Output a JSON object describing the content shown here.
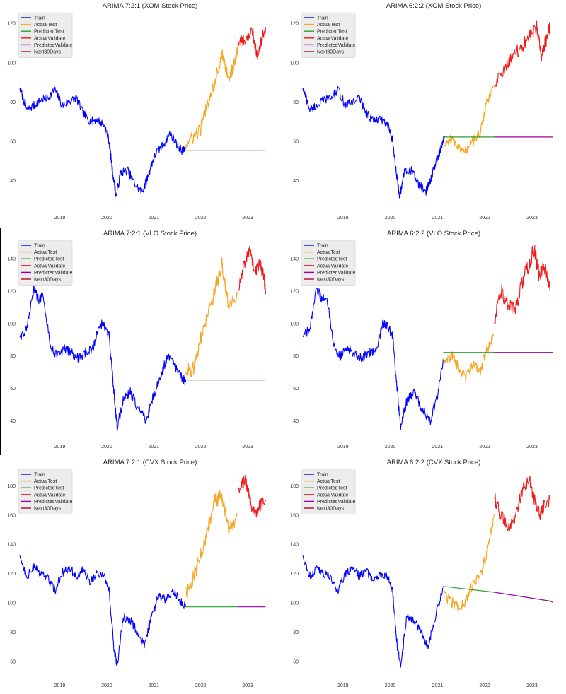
{
  "chart_data": [
    {
      "type": "line",
      "title": "ARIMA 7:2:1 (XOM Stock Price)",
      "xlabel": "",
      "ylabel": "",
      "xlim": [
        2018.15,
        2023.45
      ],
      "ylim": [
        26,
        126
      ],
      "yticks": [
        40,
        60,
        80,
        100,
        120
      ],
      "xticks": [
        "2019",
        "2020",
        "2021",
        "2022",
        "2023"
      ],
      "xtick_values": [
        2019,
        2020,
        2021,
        2022,
        2023
      ],
      "legend_position": "top-left",
      "grid": false,
      "series": [
        {
          "name": "Train",
          "color": "#0000ff",
          "x": [
            2018.15,
            2018.3,
            2018.45,
            2018.6,
            2018.75,
            2018.9,
            2019.05,
            2019.2,
            2019.35,
            2019.5,
            2019.65,
            2019.8,
            2019.95,
            2020.05,
            2020.12,
            2020.2,
            2020.3,
            2020.45,
            2020.6,
            2020.75,
            2020.85,
            2020.95,
            2021.05,
            2021.2,
            2021.35,
            2021.5,
            2021.6,
            2021.68
          ],
          "y": [
            87,
            76,
            78,
            81,
            82,
            86,
            78,
            80,
            82,
            74,
            70,
            71,
            68,
            60,
            45,
            32,
            44,
            45,
            38,
            34,
            40,
            48,
            54,
            58,
            64,
            58,
            55,
            56
          ],
          "noise": 2.2
        },
        {
          "name": "ActualTest",
          "color": "#f5a623",
          "x": [
            2021.68,
            2021.85,
            2022.0,
            2022.15,
            2022.3,
            2022.45,
            2022.6,
            2022.7,
            2022.8
          ],
          "y": [
            58,
            62,
            66,
            80,
            90,
            104,
            92,
            98,
            108
          ],
          "noise": 3.5
        },
        {
          "name": "PredictedTest",
          "color": "#2aa02a",
          "x": [
            2021.68,
            2022.8
          ],
          "y": [
            55,
            55
          ],
          "noise": 0
        },
        {
          "name": "ActualValidate",
          "color": "#ee1c1c",
          "x": [
            2022.8,
            2022.95,
            2023.1,
            2023.2,
            2023.3,
            2023.38
          ],
          "y": [
            110,
            112,
            116,
            104,
            112,
            118
          ],
          "noise": 3.0
        },
        {
          "name": "PredictedValidate",
          "color": "#9900aa",
          "x": [
            2022.8,
            2023.38
          ],
          "y": [
            55,
            55
          ],
          "noise": 0
        },
        {
          "name": "Next30Days",
          "color": "#9b1030",
          "x": [],
          "y": [],
          "noise": 0
        }
      ]
    },
    {
      "type": "line",
      "title": "ARIMA 6:2:2 (XOM Stock Price)",
      "xlabel": "",
      "ylabel": "",
      "xlim": [
        2018.15,
        2023.45
      ],
      "ylim": [
        26,
        126
      ],
      "yticks": [
        40,
        60,
        80,
        100,
        120
      ],
      "xticks": [
        "2019",
        "2020",
        "2021",
        "2022",
        "2023"
      ],
      "xtick_values": [
        2019,
        2020,
        2021,
        2022,
        2023
      ],
      "legend_position": "top-left",
      "grid": false,
      "series": [
        {
          "name": "Train",
          "color": "#0000ff",
          "x": [
            2018.15,
            2018.3,
            2018.45,
            2018.6,
            2018.75,
            2018.9,
            2019.05,
            2019.2,
            2019.35,
            2019.5,
            2019.65,
            2019.8,
            2019.95,
            2020.05,
            2020.12,
            2020.2,
            2020.3,
            2020.45,
            2020.6,
            2020.75,
            2020.85,
            2020.95,
            2021.05,
            2021.15
          ],
          "y": [
            87,
            76,
            78,
            81,
            82,
            86,
            78,
            80,
            82,
            74,
            70,
            71,
            68,
            60,
            45,
            32,
            44,
            45,
            38,
            34,
            40,
            48,
            54,
            62
          ],
          "noise": 2.2
        },
        {
          "name": "ActualTest",
          "color": "#f5a623",
          "x": [
            2021.15,
            2021.3,
            2021.45,
            2021.6,
            2021.75,
            2021.9,
            2022.05,
            2022.2
          ],
          "y": [
            58,
            62,
            56,
            55,
            60,
            64,
            80,
            88
          ],
          "noise": 2.5
        },
        {
          "name": "PredictedTest",
          "color": "#2aa02a",
          "x": [
            2021.15,
            2022.2
          ],
          "y": [
            62,
            62
          ],
          "noise": 0
        },
        {
          "name": "ActualValidate",
          "color": "#ee1c1c",
          "x": [
            2022.2,
            2022.4,
            2022.6,
            2022.8,
            2022.95,
            2023.1,
            2023.2,
            2023.3,
            2023.38
          ],
          "y": [
            88,
            96,
            104,
            108,
            114,
            118,
            102,
            112,
            118
          ],
          "noise": 3.5
        },
        {
          "name": "PredictedValidate",
          "color": "#9900aa",
          "x": [
            2022.2,
            2023.38
          ],
          "y": [
            62,
            62
          ],
          "noise": 0
        },
        {
          "name": "Next30Days",
          "color": "#9b1030",
          "x": [
            2023.38,
            2023.45
          ],
          "y": [
            62,
            62
          ],
          "noise": 0
        }
      ]
    },
    {
      "type": "line",
      "title": "ARIMA 7:2:1 (VLO Stock Price)",
      "xlabel": "",
      "ylabel": "",
      "xlim": [
        2018.15,
        2023.45
      ],
      "ylim": [
        30,
        152
      ],
      "yticks": [
        40,
        60,
        80,
        100,
        120,
        140
      ],
      "xticks": [
        "2019",
        "2020",
        "2021",
        "2022",
        "2023"
      ],
      "xtick_values": [
        2019,
        2020,
        2021,
        2022,
        2023
      ],
      "legend_position": "top-left",
      "grid": false,
      "series": [
        {
          "name": "Train",
          "color": "#0000ff",
          "x": [
            2018.15,
            2018.3,
            2018.45,
            2018.55,
            2018.65,
            2018.8,
            2018.95,
            2019.1,
            2019.25,
            2019.4,
            2019.55,
            2019.7,
            2019.85,
            2019.95,
            2020.05,
            2020.15,
            2020.22,
            2020.35,
            2020.5,
            2020.65,
            2020.85,
            2021.0,
            2021.15,
            2021.3,
            2021.45,
            2021.6,
            2021.68
          ],
          "y": [
            92,
            96,
            122,
            114,
            118,
            86,
            80,
            84,
            82,
            78,
            82,
            84,
            100,
            98,
            92,
            58,
            36,
            52,
            58,
            48,
            40,
            56,
            68,
            80,
            74,
            66,
            64
          ],
          "noise": 3.0
        },
        {
          "name": "ActualTest",
          "color": "#f5a623",
          "x": [
            2021.68,
            2021.85,
            2022.0,
            2022.15,
            2022.3,
            2022.45,
            2022.6,
            2022.8
          ],
          "y": [
            70,
            72,
            90,
            104,
            120,
            136,
            110,
            118
          ],
          "noise": 4.5
        },
        {
          "name": "PredictedTest",
          "color": "#2aa02a",
          "x": [
            2021.68,
            2022.8
          ],
          "y": [
            65,
            65
          ],
          "noise": 0
        },
        {
          "name": "ActualValidate",
          "color": "#ee1c1c",
          "x": [
            2022.8,
            2022.95,
            2023.05,
            2023.15,
            2023.25,
            2023.35,
            2023.38
          ],
          "y": [
            120,
            138,
            146,
            130,
            138,
            128,
            118
          ],
          "noise": 4.0
        },
        {
          "name": "PredictedValidate",
          "color": "#9900aa",
          "x": [
            2022.8,
            2023.38
          ],
          "y": [
            65,
            65
          ],
          "noise": 0
        },
        {
          "name": "Next30Days",
          "color": "#9b1030",
          "x": [],
          "y": [],
          "noise": 0
        }
      ]
    },
    {
      "type": "line",
      "title": "ARIMA 6:2:2 (VLO Stock Price)",
      "xlabel": "",
      "ylabel": "",
      "xlim": [
        2018.15,
        2023.45
      ],
      "ylim": [
        30,
        152
      ],
      "yticks": [
        40,
        60,
        80,
        100,
        120,
        140
      ],
      "xticks": [
        "2019",
        "2020",
        "2021",
        "2022",
        "2023"
      ],
      "xtick_values": [
        2019,
        2020,
        2021,
        2022,
        2023
      ],
      "legend_position": "top-left",
      "grid": false,
      "series": [
        {
          "name": "Train",
          "color": "#0000ff",
          "x": [
            2018.15,
            2018.3,
            2018.45,
            2018.55,
            2018.65,
            2018.8,
            2018.95,
            2019.1,
            2019.25,
            2019.4,
            2019.55,
            2019.7,
            2019.85,
            2019.95,
            2020.05,
            2020.15,
            2020.22,
            2020.35,
            2020.5,
            2020.65,
            2020.85,
            2021.0,
            2021.12
          ],
          "y": [
            92,
            96,
            122,
            114,
            118,
            86,
            80,
            84,
            82,
            78,
            82,
            84,
            100,
            98,
            92,
            58,
            36,
            52,
            58,
            48,
            40,
            56,
            78
          ],
          "noise": 3.0
        },
        {
          "name": "ActualTest",
          "color": "#f5a623",
          "x": [
            2021.12,
            2021.3,
            2021.45,
            2021.6,
            2021.75,
            2021.9,
            2022.05,
            2022.2
          ],
          "y": [
            78,
            80,
            72,
            66,
            74,
            70,
            84,
            92
          ],
          "noise": 3.5
        },
        {
          "name": "PredictedTest",
          "color": "#2aa02a",
          "x": [
            2021.12,
            2022.2
          ],
          "y": [
            82,
            82
          ],
          "noise": 0
        },
        {
          "name": "ActualValidate",
          "color": "#ee1c1c",
          "x": [
            2022.2,
            2022.35,
            2022.5,
            2022.65,
            2022.8,
            2022.95,
            2023.05,
            2023.15,
            2023.25,
            2023.38
          ],
          "y": [
            100,
            120,
            110,
            108,
            126,
            138,
            146,
            130,
            136,
            120
          ],
          "noise": 5.0
        },
        {
          "name": "PredictedValidate",
          "color": "#9900aa",
          "x": [
            2022.2,
            2023.38
          ],
          "y": [
            82,
            82
          ],
          "noise": 0
        },
        {
          "name": "Next30Days",
          "color": "#9b1030",
          "x": [
            2023.38,
            2023.45
          ],
          "y": [
            82,
            82
          ],
          "noise": 0
        }
      ]
    },
    {
      "type": "line",
      "title": "ARIMA 7:2:1 (CVX Stock Price)",
      "xlabel": "",
      "ylabel": "",
      "xlim": [
        2018.15,
        2023.45
      ],
      "ylim": [
        50,
        192
      ],
      "yticks": [
        60,
        80,
        100,
        120,
        140,
        160,
        180
      ],
      "xticks": [
        "2019",
        "2020",
        "2021",
        "2022",
        "2023"
      ],
      "xtick_values": [
        2019,
        2020,
        2021,
        2022,
        2023
      ],
      "legend_position": "top-left",
      "grid": false,
      "series": [
        {
          "name": "Train",
          "color": "#0000ff",
          "x": [
            2018.15,
            2018.3,
            2018.45,
            2018.6,
            2018.75,
            2018.9,
            2019.05,
            2019.2,
            2019.35,
            2019.5,
            2019.65,
            2019.8,
            2019.95,
            2020.05,
            2020.15,
            2020.22,
            2020.35,
            2020.5,
            2020.65,
            2020.8,
            2020.95,
            2021.1,
            2021.25,
            2021.4,
            2021.55,
            2021.68
          ],
          "y": [
            132,
            118,
            124,
            120,
            116,
            108,
            120,
            124,
            118,
            122,
            114,
            120,
            118,
            108,
            70,
            56,
            90,
            88,
            80,
            70,
            90,
            104,
            102,
            108,
            102,
            97
          ],
          "noise": 3.0
        },
        {
          "name": "ActualTest",
          "color": "#f5a623",
          "x": [
            2021.68,
            2021.85,
            2022.0,
            2022.15,
            2022.3,
            2022.45,
            2022.6,
            2022.8
          ],
          "y": [
            104,
            118,
            132,
            150,
            170,
            172,
            150,
            160
          ],
          "noise": 5.0
        },
        {
          "name": "PredictedTest",
          "color": "#2aa02a",
          "x": [
            2021.68,
            2022.8
          ],
          "y": [
            97,
            97
          ],
          "noise": 0
        },
        {
          "name": "ActualValidate",
          "color": "#ee1c1c",
          "x": [
            2022.8,
            2022.95,
            2023.05,
            2023.15,
            2023.25,
            2023.38
          ],
          "y": [
            178,
            184,
            170,
            160,
            166,
            170
          ],
          "noise": 4.5
        },
        {
          "name": "PredictedValidate",
          "color": "#9900aa",
          "x": [
            2022.8,
            2023.38
          ],
          "y": [
            97,
            97
          ],
          "noise": 0
        },
        {
          "name": "Next30Days",
          "color": "#9b1030",
          "x": [],
          "y": [],
          "noise": 0
        }
      ]
    },
    {
      "type": "line",
      "title": "ARIMA 6:2:2 (CVX Stock Price)",
      "xlabel": "",
      "ylabel": "",
      "xlim": [
        2018.15,
        2023.45
      ],
      "ylim": [
        50,
        192
      ],
      "yticks": [
        60,
        80,
        100,
        120,
        140,
        160,
        180
      ],
      "xticks": [
        "2019",
        "2020",
        "2021",
        "2022",
        "2023"
      ],
      "xtick_values": [
        2019,
        2020,
        2021,
        2022,
        2023
      ],
      "legend_position": "top-left",
      "grid": false,
      "series": [
        {
          "name": "Train",
          "color": "#0000ff",
          "x": [
            2018.15,
            2018.3,
            2018.45,
            2018.6,
            2018.75,
            2018.9,
            2019.05,
            2019.2,
            2019.35,
            2019.5,
            2019.65,
            2019.8,
            2019.95,
            2020.05,
            2020.15,
            2020.22,
            2020.35,
            2020.5,
            2020.65,
            2020.8,
            2020.95,
            2021.12
          ],
          "y": [
            132,
            118,
            124,
            120,
            116,
            108,
            120,
            124,
            118,
            122,
            114,
            120,
            118,
            108,
            70,
            56,
            90,
            88,
            80,
            70,
            90,
            110
          ],
          "noise": 3.0
        },
        {
          "name": "ActualTest",
          "color": "#f5a623",
          "x": [
            2021.12,
            2021.3,
            2021.45,
            2021.6,
            2021.75,
            2021.9,
            2022.05,
            2022.2
          ],
          "y": [
            106,
            100,
            96,
            102,
            112,
            118,
            134,
            160
          ],
          "noise": 4.0
        },
        {
          "name": "PredictedTest",
          "color": "#2aa02a",
          "x": [
            2021.12,
            2022.2
          ],
          "y": [
            111,
            107
          ],
          "noise": 0
        },
        {
          "name": "ActualValidate",
          "color": "#ee1c1c",
          "x": [
            2022.2,
            2022.35,
            2022.5,
            2022.65,
            2022.8,
            2022.95,
            2023.05,
            2023.15,
            2023.25,
            2023.38
          ],
          "y": [
            172,
            160,
            150,
            160,
            176,
            184,
            170,
            160,
            166,
            170
          ],
          "noise": 5.0
        },
        {
          "name": "PredictedValidate",
          "color": "#9900aa",
          "x": [
            2022.2,
            2023.38
          ],
          "y": [
            107,
            101
          ],
          "noise": 0
        },
        {
          "name": "Next30Days",
          "color": "#9b1030",
          "x": [
            2023.38,
            2023.45
          ],
          "y": [
            101,
            100
          ],
          "noise": 0
        }
      ]
    }
  ]
}
